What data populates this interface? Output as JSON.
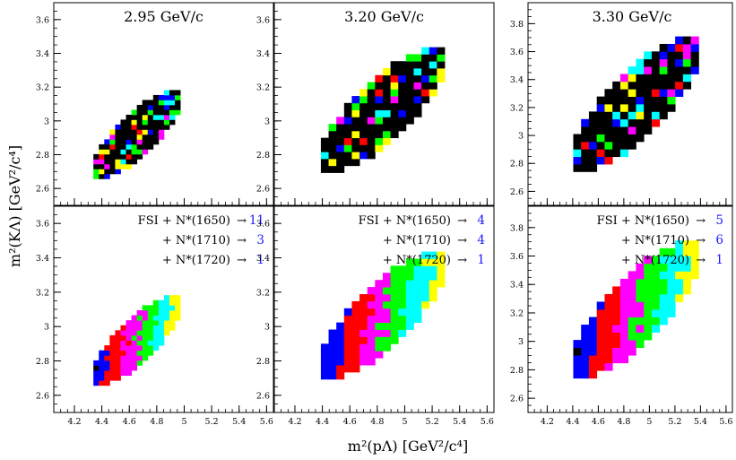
{
  "chart_data": {
    "type": "heatmap",
    "xlabel": "m²(pΛ)  [GeV²/c⁴]",
    "ylabel": "m²(KΛ)  [GeV²/c⁴]",
    "x_ticks": [
      "4.2",
      "4.4",
      "4.6",
      "4.8",
      "5",
      "5.2",
      "5.4",
      "5.6"
    ],
    "x_tick_values": [
      4.2,
      4.4,
      4.6,
      4.8,
      5.0,
      5.2,
      5.4,
      5.6
    ],
    "xlim": [
      4.05,
      5.65
    ],
    "palette": {
      "black": "#000000",
      "blue": "#0000ff",
      "red": "#ff0000",
      "magenta": "#ff00ff",
      "green": "#00ff00",
      "cyan": "#00ffff",
      "yellow": "#ffff00"
    },
    "columns": [
      {
        "energy_label": "2.95 GeV/c",
        "ylim": [
          2.5,
          3.7
        ],
        "y_ticks": [
          "2.6",
          "2.8",
          "3",
          "3.2",
          "3.4",
          "3.6"
        ],
        "y_tick_values": [
          2.6,
          2.8,
          3.0,
          3.2,
          3.4,
          3.6
        ],
        "dalitz_region": {
          "x_min": 4.22,
          "x_max": 5.09,
          "y_min": 2.57,
          "y_max": 3.27
        },
        "data_panel": {
          "pattern": "mixed"
        },
        "fit_panel": {
          "pattern": "bands",
          "legend": [
            {
              "label": "FSI + N*(1650)",
              "arrow": "→",
              "value": "11"
            },
            {
              "label": "+ N*(1710)",
              "arrow": "→",
              "value": "3"
            },
            {
              "label": "+ N*(1720)",
              "arrow": "→",
              "value": "1"
            }
          ]
        }
      },
      {
        "energy_label": "3.20 GeV/c",
        "ylim": [
          2.5,
          3.7
        ],
        "y_ticks": [
          "2.6",
          "2.8",
          "3",
          "3.2",
          "3.4",
          "3.6"
        ],
        "y_tick_values": [
          2.6,
          2.8,
          3.0,
          3.2,
          3.4,
          3.6
        ],
        "dalitz_region": {
          "x_min": 4.22,
          "x_max": 5.46,
          "y_min": 2.57,
          "y_max": 3.56
        },
        "data_panel": {
          "pattern": "mixed"
        },
        "fit_panel": {
          "pattern": "bands",
          "legend": [
            {
              "label": "FSI + N*(1650)",
              "arrow": "→",
              "value": "4"
            },
            {
              "label": "+ N*(1710)",
              "arrow": "→",
              "value": "4"
            },
            {
              "label": "+ N*(1720)",
              "arrow": "→",
              "value": "1"
            }
          ]
        }
      },
      {
        "energy_label": "3.30 GeV/c",
        "ylim": [
          2.5,
          3.95
        ],
        "y_ticks": [
          "2.6",
          "2.8",
          "3",
          "3.2",
          "3.4",
          "3.6",
          "3.8"
        ],
        "y_tick_values": [
          2.6,
          2.8,
          3.0,
          3.2,
          3.4,
          3.6,
          3.8
        ],
        "dalitz_region": {
          "x_min": 4.22,
          "x_max": 5.57,
          "y_min": 2.58,
          "y_max": 3.87
        },
        "data_panel": {
          "pattern": "mixed"
        },
        "fit_panel": {
          "pattern": "bands",
          "legend": [
            {
              "label": "FSI + N*(1650)",
              "arrow": "→",
              "value": "5"
            },
            {
              "label": "+ N*(1710)",
              "arrow": "→",
              "value": "6"
            },
            {
              "label": "+ N*(1720)",
              "arrow": "→",
              "value": "1"
            }
          ]
        }
      }
    ]
  }
}
